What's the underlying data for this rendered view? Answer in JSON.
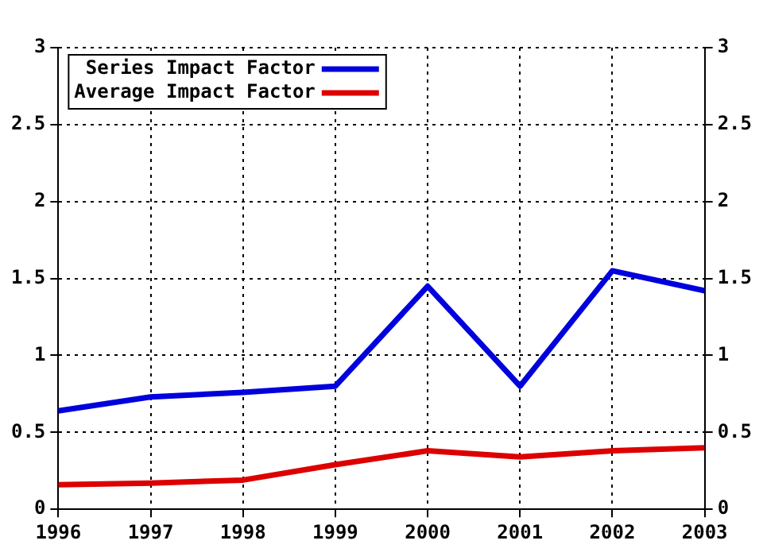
{
  "chart_data": {
    "type": "line",
    "x": [
      1996,
      1997,
      1998,
      1999,
      2000,
      2001,
      2002,
      2003
    ],
    "series": [
      {
        "name": "Series Impact Factor",
        "color": "#0000dd",
        "values": [
          0.64,
          0.73,
          0.76,
          0.8,
          1.45,
          0.8,
          1.55,
          1.42
        ]
      },
      {
        "name": "Average Impact Factor",
        "color": "#dd0000",
        "values": [
          0.16,
          0.17,
          0.19,
          0.29,
          0.38,
          0.34,
          0.38,
          0.4
        ]
      }
    ],
    "xlim": [
      1996,
      2003
    ],
    "xticks": [
      1996,
      1997,
      1998,
      1999,
      2000,
      2001,
      2002,
      2003
    ],
    "ylim": [
      0,
      3
    ],
    "yticks": [
      0,
      0.5,
      1,
      1.5,
      2,
      2.5,
      3
    ],
    "y2lim": [
      0,
      3
    ],
    "y2ticks": [
      0,
      0.5,
      1,
      1.5,
      2,
      2.5,
      3
    ],
    "grid": true,
    "legend": "top left",
    "marker": "none",
    "line_style": "solid"
  }
}
